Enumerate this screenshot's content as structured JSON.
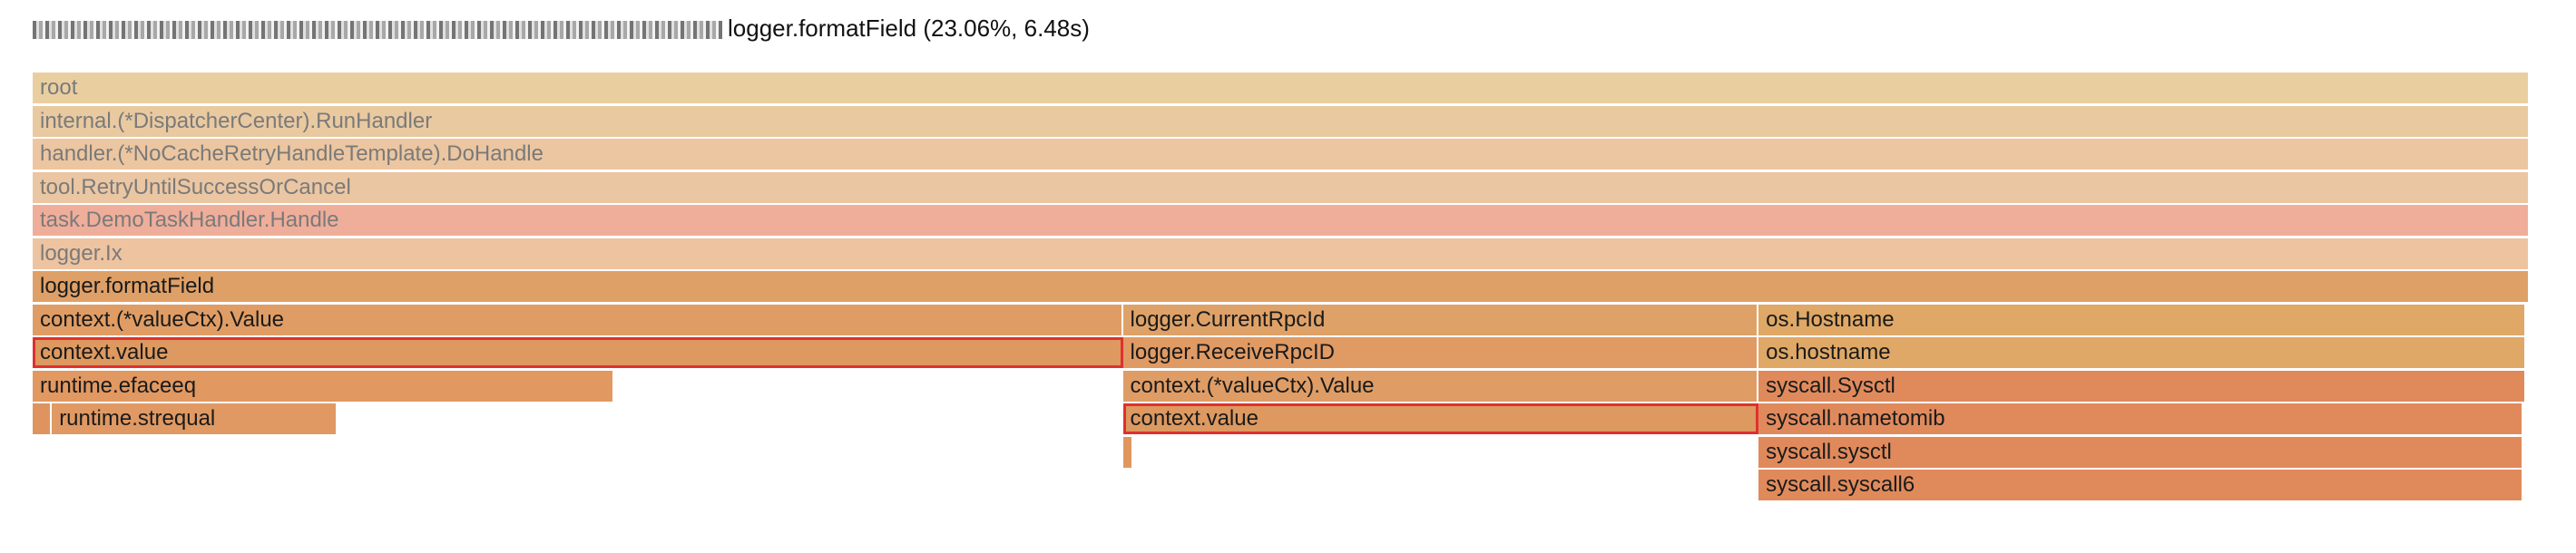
{
  "header": {
    "title": "logger.formatField (23.06%, 6.48s)"
  },
  "flamegraph": {
    "frames": [
      {
        "label": "root",
        "depth": 0,
        "start": 0,
        "span": 1,
        "color": "#e9cfa0",
        "dim": true
      },
      {
        "label": "internal.(*DispatcherCenter).RunHandler",
        "depth": 1,
        "start": 0,
        "span": 1,
        "color": "#e9c9a0",
        "dim": true
      },
      {
        "label": "handler.(*NoCacheRetryHandleTemplate).DoHandle",
        "depth": 2,
        "start": 0,
        "span": 1,
        "color": "#ecc6a0",
        "dim": true
      },
      {
        "label": "tool.RetryUntilSuccessOrCancel",
        "depth": 3,
        "start": 0,
        "span": 1,
        "color": "#ebc6a2",
        "dim": true
      },
      {
        "label": "task.DemoTaskHandler.Handle",
        "depth": 4,
        "start": 0,
        "span": 1,
        "color": "#efae9a",
        "dim": true
      },
      {
        "label": "logger.Ix",
        "depth": 5,
        "start": 0,
        "span": 1,
        "color": "#eec3a0",
        "dim": true
      },
      {
        "label": "logger.formatField",
        "depth": 6,
        "start": 0,
        "span": 1,
        "color": "#dfa067",
        "dim": false
      },
      {
        "label": "context.(*valueCtx).Value",
        "depth": 7,
        "start": 0,
        "span": 0.4366,
        "color": "#df9d65",
        "dim": false
      },
      {
        "label": "logger.CurrentRpcId",
        "depth": 7,
        "start": 0.4366,
        "span": 0.2546,
        "color": "#dea268",
        "dim": false
      },
      {
        "label": "os.Hostname",
        "depth": 7,
        "start": 0.6912,
        "span": 0.3075,
        "color": "#dfa866",
        "dim": false
      },
      {
        "label": "context.value",
        "depth": 8,
        "start": 0,
        "span": 0.4366,
        "color": "#dd9960",
        "dim": false,
        "selected": true
      },
      {
        "label": "logger.ReceiveRpcID",
        "depth": 8,
        "start": 0.4366,
        "span": 0.2546,
        "color": "#e09a64",
        "dim": false
      },
      {
        "label": "os.hostname",
        "depth": 8,
        "start": 0.6912,
        "span": 0.3075,
        "color": "#dfa866",
        "dim": false
      },
      {
        "label": "runtime.efaceeq",
        "depth": 9,
        "start": 0,
        "span": 0.233,
        "color": "#e19861",
        "dim": false
      },
      {
        "label": "context.(*valueCtx).Value",
        "depth": 9,
        "start": 0.4366,
        "span": 0.2546,
        "color": "#df9d65",
        "dim": false
      },
      {
        "label": "syscall.Sysctl",
        "depth": 9,
        "start": 0.6912,
        "span": 0.3075,
        "color": "#e08a5c",
        "dim": false
      },
      {
        "label": "",
        "depth": 10,
        "start": 0,
        "span": 0.0077,
        "color": "#df9460",
        "dim": false
      },
      {
        "label": "runtime.strequal",
        "depth": 10,
        "start": 0.0077,
        "span": 0.1144,
        "color": "#e09962",
        "dim": false
      },
      {
        "label": "context.value",
        "depth": 10,
        "start": 0.4366,
        "span": 0.2546,
        "color": "#dd9960",
        "dim": false,
        "selected": true
      },
      {
        "label": "syscall.nametomib",
        "depth": 10,
        "start": 0.6912,
        "span": 0.3063,
        "color": "#e08a5c",
        "dim": false
      },
      {
        "label": "",
        "depth": 11,
        "start": 0.4366,
        "span": 0.004,
        "color": "#e0975f",
        "dim": false
      },
      {
        "label": "syscall.sysctl",
        "depth": 11,
        "start": 0.6912,
        "span": 0.3063,
        "color": "#e08a5c",
        "dim": false
      },
      {
        "label": "syscall.syscall6",
        "depth": 12,
        "start": 0.6912,
        "span": 0.3063,
        "color": "#e08a5c",
        "dim": false
      }
    ]
  }
}
